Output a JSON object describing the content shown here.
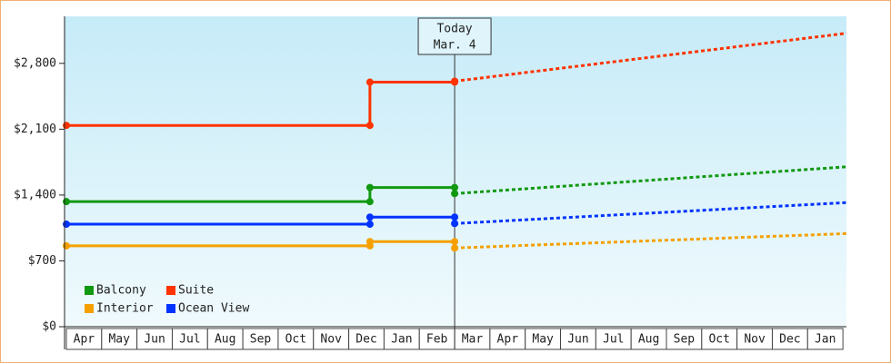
{
  "chart_data": {
    "type": "line",
    "categories": [
      "Apr",
      "May",
      "Jun",
      "Jul",
      "Aug",
      "Sep",
      "Oct",
      "Nov",
      "Dec",
      "Jan",
      "Feb",
      "Mar",
      "Apr",
      "May",
      "Jun",
      "Jul",
      "Aug",
      "Sep",
      "Oct",
      "Nov",
      "Dec",
      "Jan"
    ],
    "xlim": [
      0,
      22.1
    ],
    "ylim": [
      0,
      3300
    ],
    "yticks": [
      {
        "value": 0,
        "label": "$0"
      },
      {
        "value": 700,
        "label": "$700"
      },
      {
        "value": 1400,
        "label": "$1,400"
      },
      {
        "value": 2100,
        "label": "$2,100"
      },
      {
        "value": 2800,
        "label": "$2,800"
      }
    ],
    "annotation": {
      "x": 11,
      "lines": [
        "Today",
        "Mar. 4"
      ]
    },
    "legend": "lower left",
    "series": [
      {
        "name": "Balcony",
        "color": "#119911",
        "x": [
          0,
          8.6,
          8.6,
          11
        ],
        "values": [
          1330,
          1330,
          1480,
          1480
        ],
        "forecast": {
          "x": [
            11,
            22.1
          ],
          "values": [
            1415,
            1700
          ]
        }
      },
      {
        "name": "Suite",
        "color": "#ff3300",
        "x": [
          0,
          8.6,
          8.6,
          11
        ],
        "values": [
          2140,
          2140,
          2600,
          2600
        ],
        "forecast": {
          "x": [
            11,
            22.1
          ],
          "values": [
            2610,
            3120
          ]
        }
      },
      {
        "name": "Interior",
        "color": "#f5a000",
        "x": [
          0,
          8.6,
          8.6,
          11
        ],
        "values": [
          860,
          860,
          905,
          905
        ],
        "forecast": {
          "x": [
            11,
            22.1
          ],
          "values": [
            837,
            990
          ]
        }
      },
      {
        "name": "Ocean View",
        "color": "#0033ff",
        "x": [
          0,
          8.6,
          8.6,
          11
        ],
        "values": [
          1090,
          1090,
          1165,
          1165
        ],
        "forecast": {
          "x": [
            11,
            22.1
          ],
          "values": [
            1097,
            1320
          ]
        }
      }
    ]
  }
}
